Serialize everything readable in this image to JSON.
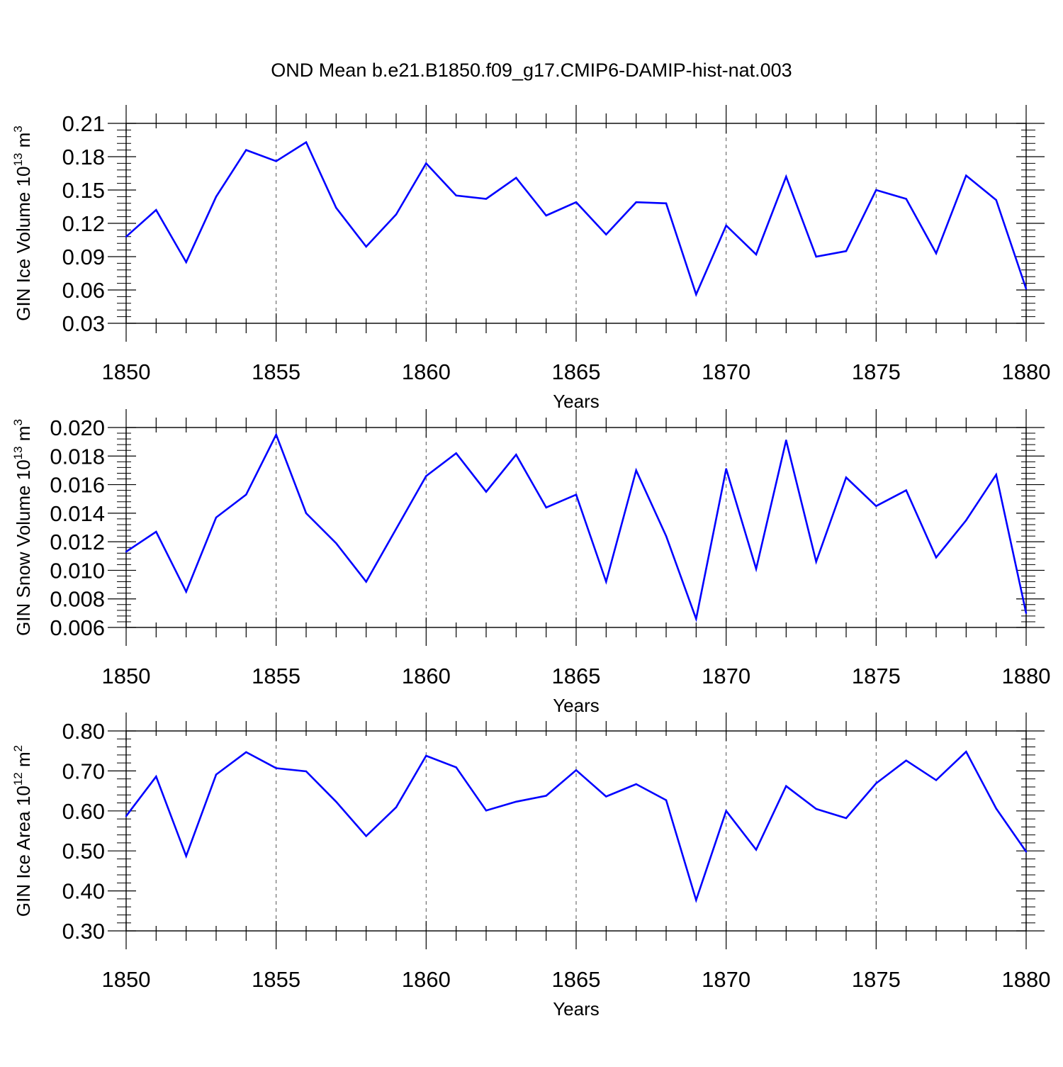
{
  "figure_title": "OND Mean b.e21.B1850.f09_g17.CMIP6-DAMIP-hist-nat.003",
  "chart_data": [
    {
      "type": "line",
      "ylabel": "GIN Ice Volume 10",
      "ylabel_sup": "13",
      "ylabel_unit": " m",
      "ylabel_unit_sup": "3",
      "xlabel": "Years",
      "xlim": [
        1850,
        1880
      ],
      "ylim": [
        0.03,
        0.21
      ],
      "yticks": [
        "0.03",
        "0.06",
        "0.09",
        "0.12",
        "0.15",
        "0.18",
        "0.21"
      ],
      "xticks": [
        "1850",
        "1855",
        "1860",
        "1865",
        "1870",
        "1875",
        "1880"
      ],
      "grid": "x-dashed",
      "color": "#0000ff",
      "x": [
        1850,
        1851,
        1852,
        1853,
        1854,
        1855,
        1856,
        1857,
        1858,
        1859,
        1860,
        1861,
        1862,
        1863,
        1864,
        1865,
        1866,
        1867,
        1868,
        1869,
        1870,
        1871,
        1872,
        1873,
        1874,
        1875,
        1876,
        1877,
        1878,
        1879,
        1880
      ],
      "y": [
        0.108,
        0.132,
        0.085,
        0.144,
        0.186,
        0.176,
        0.193,
        0.134,
        0.099,
        0.128,
        0.174,
        0.145,
        0.142,
        0.161,
        0.127,
        0.139,
        0.11,
        0.139,
        0.138,
        0.056,
        0.118,
        0.092,
        0.162,
        0.09,
        0.095,
        0.15,
        0.142,
        0.093,
        0.163,
        0.141,
        0.061
      ]
    },
    {
      "type": "line",
      "ylabel": "GIN Snow Volume 10",
      "ylabel_sup": "13",
      "ylabel_unit": " m",
      "ylabel_unit_sup": "3",
      "xlabel": "Years",
      "xlim": [
        1850,
        1880
      ],
      "ylim": [
        0.006,
        0.02
      ],
      "yticks": [
        "0.006",
        "0.008",
        "0.010",
        "0.012",
        "0.014",
        "0.016",
        "0.018",
        "0.020"
      ],
      "xticks": [
        "1850",
        "1855",
        "1860",
        "1865",
        "1870",
        "1875",
        "1880"
      ],
      "grid": "x-dashed",
      "color": "#0000ff",
      "x": [
        1850,
        1851,
        1852,
        1853,
        1854,
        1855,
        1856,
        1857,
        1858,
        1859,
        1860,
        1861,
        1862,
        1863,
        1864,
        1865,
        1866,
        1867,
        1868,
        1869,
        1870,
        1871,
        1872,
        1873,
        1874,
        1875,
        1876,
        1877,
        1878,
        1879,
        1880
      ],
      "y": [
        0.0113,
        0.0127,
        0.0085,
        0.0137,
        0.0153,
        0.0195,
        0.014,
        0.0119,
        0.0092,
        0.0129,
        0.0166,
        0.0182,
        0.0155,
        0.0181,
        0.0144,
        0.0153,
        0.0092,
        0.017,
        0.0124,
        0.0066,
        0.0171,
        0.0101,
        0.0191,
        0.0106,
        0.0165,
        0.0145,
        0.0156,
        0.0109,
        0.0135,
        0.0167,
        0.007
      ]
    },
    {
      "type": "line",
      "ylabel": "GIN Ice Area 10",
      "ylabel_sup": "12",
      "ylabel_unit": " m",
      "ylabel_unit_sup": "2",
      "xlabel": "Years",
      "xlim": [
        1850,
        1880
      ],
      "ylim": [
        0.3,
        0.8
      ],
      "yticks": [
        "0.30",
        "0.40",
        "0.50",
        "0.60",
        "0.70",
        "0.80"
      ],
      "xticks": [
        "1850",
        "1855",
        "1860",
        "1865",
        "1870",
        "1875",
        "1880"
      ],
      "grid": "x-dashed",
      "color": "#0000ff",
      "x": [
        1850,
        1851,
        1852,
        1853,
        1854,
        1855,
        1856,
        1857,
        1858,
        1859,
        1860,
        1861,
        1862,
        1863,
        1864,
        1865,
        1866,
        1867,
        1868,
        1869,
        1870,
        1871,
        1872,
        1873,
        1874,
        1875,
        1876,
        1877,
        1878,
        1879,
        1880
      ],
      "y": [
        0.587,
        0.686,
        0.487,
        0.691,
        0.747,
        0.707,
        0.699,
        0.623,
        0.537,
        0.609,
        0.738,
        0.709,
        0.601,
        0.623,
        0.638,
        0.702,
        0.636,
        0.667,
        0.627,
        0.377,
        0.6,
        0.503,
        0.662,
        0.605,
        0.582,
        0.669,
        0.726,
        0.677,
        0.748,
        0.606,
        0.498
      ]
    }
  ]
}
